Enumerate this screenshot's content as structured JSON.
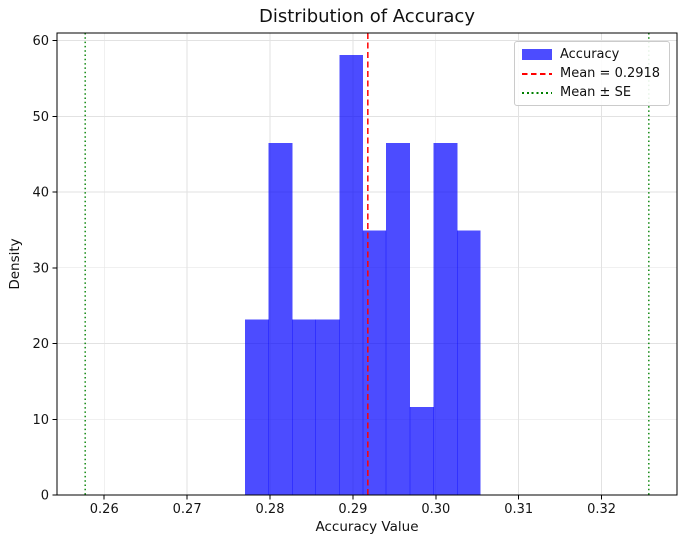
{
  "title": "Distribution of Accuracy",
  "axes": {
    "xlabel": "Accuracy Value",
    "ylabel": "Density"
  },
  "legend": {
    "position": "upper right",
    "items": [
      {
        "label": "Accuracy",
        "swatch": "patch",
        "color": "#4c4cff"
      },
      {
        "label": "Mean = 0.2918",
        "swatch": "dashed-line",
        "color": "#ff0000"
      },
      {
        "label": "Mean ± SE",
        "swatch": "dotted-line",
        "color": "#008000"
      }
    ]
  },
  "chart_data": {
    "type": "bar",
    "subtype": "histogram",
    "title": "Distribution of Accuracy",
    "xlabel": "Accuracy Value",
    "ylabel": "Density",
    "series_name": "Accuracy",
    "bin_edges": [
      0.277,
      0.2798,
      0.2827,
      0.2855,
      0.2884,
      0.2912,
      0.294,
      0.2969,
      0.2997,
      0.3026,
      0.3054
    ],
    "densities": [
      23.2,
      46.5,
      23.2,
      23.2,
      58.1,
      34.9,
      46.5,
      11.6,
      46.5,
      34.9
    ],
    "counts": [
      2,
      4,
      2,
      2,
      5,
      3,
      4,
      1,
      4,
      3
    ],
    "bar_color": "#0000ff",
    "bar_alpha": 0.7,
    "mean": 0.2918,
    "mean_line": {
      "x": 0.2918,
      "label": "Mean = 0.2918",
      "color": "#ff0000",
      "style": "dashed"
    },
    "se_lines": {
      "xs": [
        0.2577,
        0.3257
      ],
      "label": "Mean ± SE",
      "color": "#008000",
      "style": "dotted"
    },
    "xticks": [
      0.26,
      0.27,
      0.28,
      0.29,
      0.3,
      0.31,
      0.32
    ],
    "xtick_labels": [
      "0.26",
      "0.27",
      "0.28",
      "0.29",
      "0.30",
      "0.31",
      "0.32"
    ],
    "yticks": [
      0,
      10,
      20,
      30,
      40,
      50,
      60
    ],
    "ytick_labels": [
      "0",
      "10",
      "20",
      "30",
      "40",
      "50",
      "60"
    ],
    "xlim": [
      0.2543,
      0.3291
    ],
    "ylim": [
      0,
      61.0
    ],
    "grid": true,
    "grid_color": "#e2e2e2",
    "legend_position": "upper right"
  }
}
